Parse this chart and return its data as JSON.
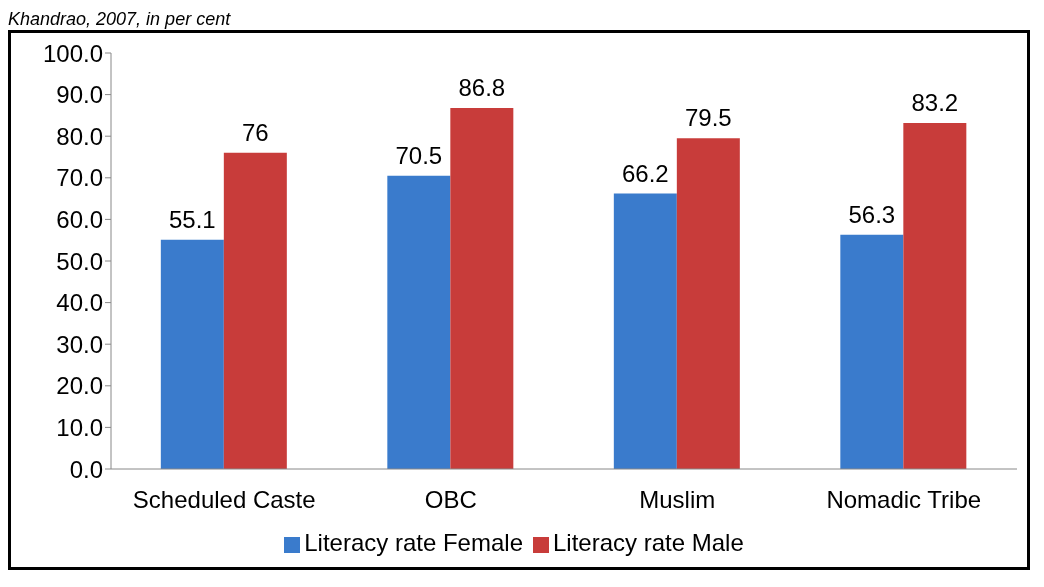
{
  "chart_data": {
    "type": "bar",
    "annotations": [
      "Khandrao, 2007, in per cent"
    ],
    "categories": [
      "Scheduled Caste",
      "OBC",
      "Muslim",
      "Nomadic Tribe"
    ],
    "series": [
      {
        "name": "Literacy rate Female",
        "color": "#3a7bcc",
        "values": [
          55.1,
          70.5,
          66.2,
          56.3
        ]
      },
      {
        "name": "Literacy rate Male",
        "color": "#c83c3a",
        "values": [
          76,
          86.8,
          79.5,
          83.2
        ]
      }
    ],
    "ylim": [
      0,
      100
    ],
    "yticks": [
      {
        "value": 0,
        "label": "0.0"
      },
      {
        "value": 10,
        "label": "10.0"
      },
      {
        "value": 20,
        "label": "20.0"
      },
      {
        "value": 30,
        "label": "30.0"
      },
      {
        "value": 40,
        "label": "40.0"
      },
      {
        "value": 50,
        "label": "50.0"
      },
      {
        "value": 60,
        "label": "60.0"
      },
      {
        "value": 70,
        "label": "70.0"
      },
      {
        "value": 80,
        "label": "80.0"
      },
      {
        "value": 90,
        "label": "90.0"
      },
      {
        "value": 100,
        "label": "100.0"
      }
    ],
    "data_labels": true,
    "legend": "bottom",
    "grid": false
  }
}
